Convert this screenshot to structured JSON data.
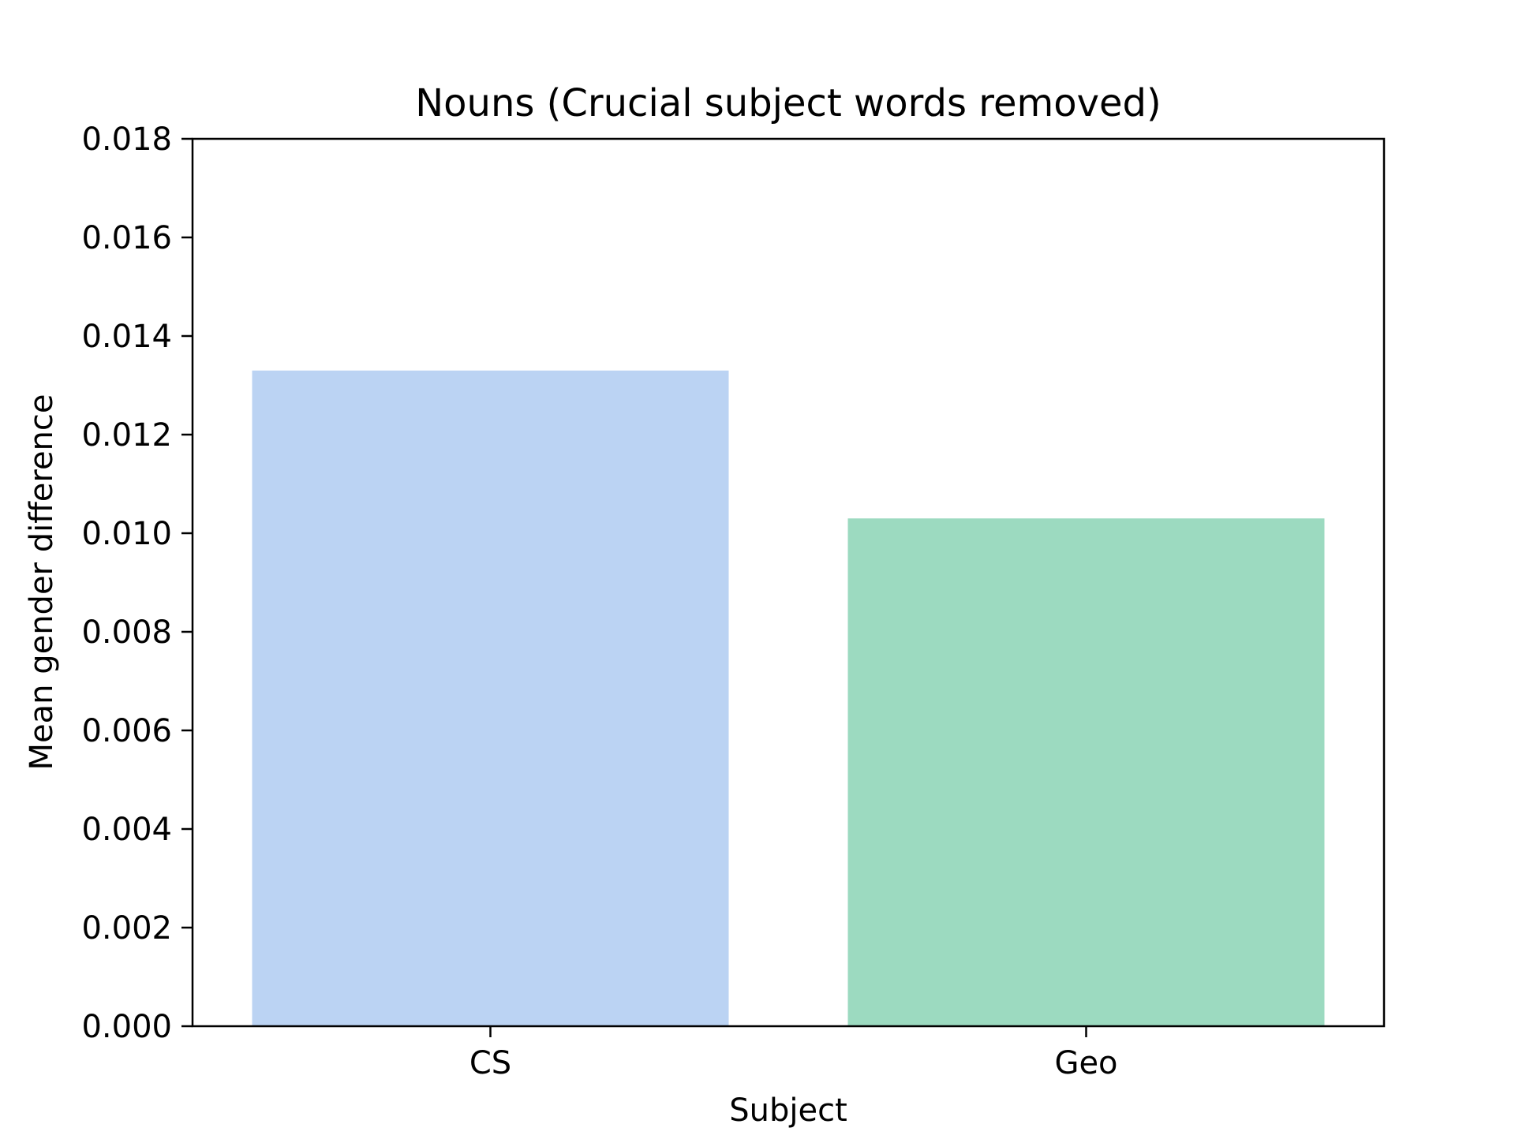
{
  "chart_data": {
    "type": "bar",
    "title": "Nouns (Crucial subject words removed)",
    "xlabel": "Subject",
    "ylabel": "Mean gender difference",
    "categories": [
      "CS",
      "Geo"
    ],
    "values": [
      0.0133,
      0.0103
    ],
    "colors": [
      "#bbd3f3",
      "#9cdac0"
    ],
    "ylim": [
      0,
      0.018
    ],
    "yticks": [
      0.0,
      0.002,
      0.004,
      0.006,
      0.008,
      0.01,
      0.012,
      0.014,
      0.016,
      0.018
    ],
    "ytick_labels": [
      "0.000",
      "0.002",
      "0.004",
      "0.006",
      "0.008",
      "0.010",
      "0.012",
      "0.014",
      "0.016",
      "0.018"
    ],
    "grid": false,
    "legend": "none"
  }
}
